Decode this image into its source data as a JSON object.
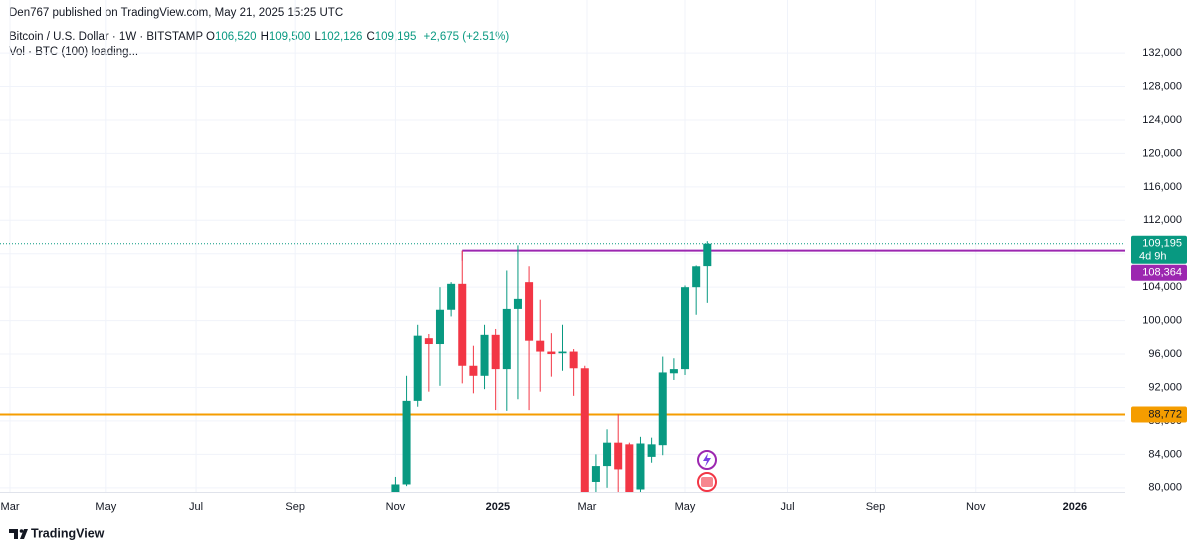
{
  "chart_data": {
    "type": "candlestick",
    "published": "Den767 published on TradingView.com, May 21, 2025 15:25 UTC",
    "symbol": "Bitcoin / U.S. Dollar · 1W · BITSTAMP",
    "ohlc_legend": [
      {
        "key": "O",
        "value": 106520,
        "label": "106,520"
      },
      {
        "key": "H",
        "value": 109500,
        "label": "109,500"
      },
      {
        "key": "L",
        "value": 102126,
        "label": "102,126"
      },
      {
        "key": "C",
        "value": 109195,
        "label": "109,195"
      }
    ],
    "change": "+2,675 (+2.51%)",
    "volume_legend": "Vol · BTC (100) loading...",
    "brand": "TradingView",
    "up_color": "#089981",
    "down_color": "#f23645",
    "categories": [
      null,
      null,
      null,
      null,
      null,
      null,
      null,
      null,
      null,
      null,
      null,
      null,
      null,
      null,
      null,
      null,
      null,
      null,
      null,
      null,
      null,
      null,
      null,
      null,
      null,
      null,
      null,
      null,
      null
    ],
    "open": [
      79400,
      80400,
      90400,
      97900,
      97200,
      101300,
      104400,
      94600,
      93400,
      98300,
      94200,
      101400,
      104600,
      97600,
      96300,
      96100,
      96300,
      94300,
      80700,
      82600,
      85400,
      85200,
      79800,
      83700,
      85100,
      93700,
      94200,
      104000,
      106520
    ],
    "high": [
      81300,
      93400,
      99500,
      98400,
      104000,
      104600,
      108364,
      97000,
      99500,
      99000,
      106000,
      109000,
      106500,
      102500,
      98500,
      99500,
      96600,
      94600,
      84000,
      87000,
      88800,
      85400,
      86100,
      86000,
      95700,
      95500,
      104200,
      106600,
      109500
    ],
    "low": [
      78700,
      80200,
      89700,
      91500,
      92200,
      100500,
      92500,
      91300,
      91800,
      89300,
      89200,
      90600,
      89300,
      91500,
      93300,
      94000,
      91000,
      76600,
      79000,
      80000,
      78600,
      76300,
      78300,
      83000,
      83900,
      92900,
      93500,
      100700,
      102126
    ],
    "close": [
      80400,
      90400,
      98200,
      97200,
      101300,
      104400,
      94600,
      93400,
      98300,
      94200,
      101400,
      102600,
      97600,
      96300,
      96000,
      96300,
      94300,
      78200,
      82600,
      85400,
      82200,
      78500,
      85300,
      85200,
      93800,
      94200,
      104000,
      106500,
      109195
    ],
    "xlim": [
      -35.5,
      65.5
    ],
    "xticks": [
      {
        "value": -34.6,
        "label": "Mar"
      },
      {
        "value": -26,
        "label": "May"
      },
      {
        "value": -17.9,
        "label": "Jul"
      },
      {
        "value": -9,
        "label": "Sep"
      },
      {
        "value": 0,
        "label": "Nov"
      },
      {
        "value": 9.2,
        "label": "2025"
      },
      {
        "value": 17.2,
        "label": "Mar"
      },
      {
        "value": 26,
        "label": "May"
      },
      {
        "value": 35.2,
        "label": "Jul"
      },
      {
        "value": 43.1,
        "label": "Sep"
      },
      {
        "value": 52.1,
        "label": "Nov"
      },
      {
        "value": 61,
        "label": "2026"
      }
    ],
    "ylim": [
      79500,
      135000
    ],
    "yticks": [
      {
        "value": 80000,
        "label": "80,000"
      },
      {
        "value": 84000,
        "label": "84,000"
      },
      {
        "value": 88000,
        "label": "88,000"
      },
      {
        "value": 92000,
        "label": "92,000"
      },
      {
        "value": 96000,
        "label": "96,000"
      },
      {
        "value": 100000,
        "label": "100,000"
      },
      {
        "value": 104000,
        "label": "104,000"
      },
      {
        "value": 108000,
        "label": "108,000"
      },
      {
        "value": 112000,
        "label": "112,000"
      },
      {
        "value": 116000,
        "label": "116,000"
      },
      {
        "value": 120000,
        "label": "120,000"
      },
      {
        "value": 124000,
        "label": "124,000"
      },
      {
        "value": 128000,
        "label": "128,000"
      },
      {
        "value": 132000,
        "label": "132,000"
      }
    ],
    "grid": true,
    "last_price": {
      "value": 109195,
      "label": "109,195",
      "countdown": "4d 9h",
      "color": "#089981"
    },
    "price_lines": [
      {
        "value": 108364,
        "label": "108,364",
        "color": "#9c27b0",
        "from_x": 6
      },
      {
        "value": 88772,
        "label": "88,772",
        "color": "#f59d00"
      }
    ]
  }
}
